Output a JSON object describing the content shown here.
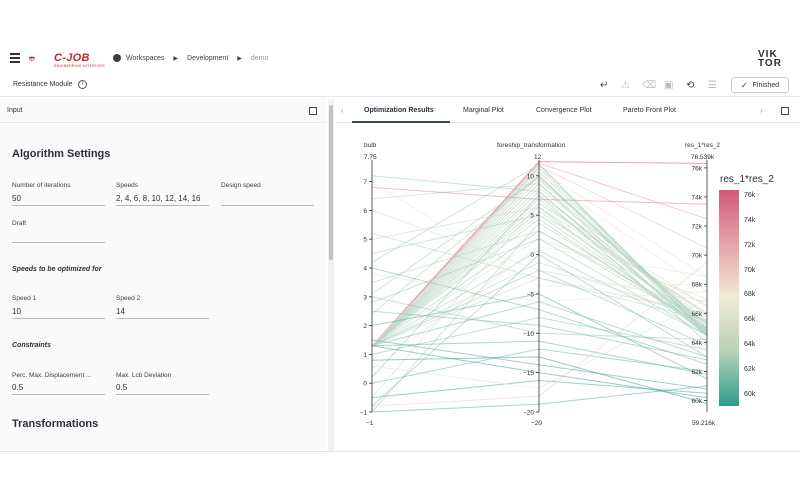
{
  "header": {
    "logo_text": "C-JOB",
    "logo_subtext": "ENGINEERING INTERIORS",
    "breadcrumb": [
      "Workspaces",
      "Development",
      "demo"
    ],
    "brand": [
      "VIK",
      "TOR"
    ]
  },
  "toolbar": {
    "module_title": "Resistance Module",
    "finished_label": "Finished"
  },
  "left_panel": {
    "tab_label": "Input",
    "algorithm_title": "Algorithm Settings",
    "fields_row1": [
      {
        "label": "Number of iterations",
        "value": "50"
      },
      {
        "label": "Speeds",
        "value": "2, 4, 6, 8, 10, 12, 14, 16"
      },
      {
        "label": "Design speed",
        "value": ""
      }
    ],
    "draft": {
      "label": "Draft",
      "value": ""
    },
    "speeds_title": "Speeds to be optimized for",
    "speeds": [
      {
        "label": "Speed 1",
        "value": "10"
      },
      {
        "label": "Speed 2",
        "value": "14"
      }
    ],
    "constraints_title": "Constraints",
    "constraints": [
      {
        "label": "Perc. Max. Displacement ...",
        "value": "0.5"
      },
      {
        "label": "Max. Lcb Deviation",
        "value": "0.5"
      }
    ],
    "transformations_title": "Transformations"
  },
  "right_panel": {
    "tabs": [
      "Optimization Results",
      "Marginal Plot",
      "Convergence Plot",
      "Pareto Front Plot"
    ],
    "active_tab": 0
  },
  "chart_data": {
    "type": "parallel_coordinates",
    "dimensions": [
      {
        "name": "bulb",
        "range_top": "7.75",
        "range_bottom": "−1",
        "min": -1,
        "max": 7.75,
        "ticks": [
          "7",
          "6",
          "5",
          "4",
          "3",
          "2",
          "1",
          "0",
          "−1"
        ],
        "tick_values": [
          7,
          6,
          5,
          4,
          3,
          2,
          1,
          0,
          -1
        ]
      },
      {
        "name": "foreship_transformation",
        "range_top": "12",
        "range_bottom": "−20",
        "min": -20,
        "max": 12,
        "ticks": [
          "10",
          "5",
          "0",
          "−5",
          "−10",
          "−15",
          "−20"
        ],
        "tick_values": [
          10,
          5,
          0,
          -5,
          -10,
          -15,
          -20
        ]
      },
      {
        "name": "res_1*res_2",
        "range_top": "76.539k",
        "range_bottom": "59.216k",
        "min": 59216,
        "max": 76539,
        "ticks": [
          "76k",
          "74k",
          "72k",
          "70k",
          "68k",
          "66k",
          "64k",
          "62k",
          "60k"
        ],
        "tick_values": [
          76000,
          74000,
          72000,
          70000,
          68000,
          66000,
          64000,
          62000,
          60000
        ]
      }
    ],
    "colorbar": {
      "title": "res_1*res_2",
      "ticks": [
        "76k",
        "74k",
        "72k",
        "70k",
        "68k",
        "66k",
        "64k",
        "62k",
        "60k"
      ],
      "colors": [
        "#d6587a",
        "#f1ead6",
        "#2a9d8f"
      ]
    },
    "lines": [
      [
        1.3,
        11.5,
        64500
      ],
      [
        1.3,
        11.0,
        64800
      ],
      [
        1.3,
        10.5,
        65000
      ],
      [
        1.3,
        10.0,
        64600
      ],
      [
        1.3,
        9.5,
        65200
      ],
      [
        1.3,
        9.0,
        64400
      ],
      [
        1.3,
        8.5,
        65500
      ],
      [
        1.3,
        8.0,
        64700
      ],
      [
        1.3,
        7.5,
        65800
      ],
      [
        1.3,
        7.0,
        64900
      ],
      [
        1.3,
        6.5,
        66000
      ],
      [
        1.3,
        6.0,
        64500
      ],
      [
        1.3,
        5.5,
        65300
      ],
      [
        1.3,
        5.0,
        66500
      ],
      [
        1.3,
        4.5,
        64700
      ],
      [
        1.3,
        3.0,
        65000
      ],
      [
        1.3,
        2.0,
        67000
      ],
      [
        1.3,
        0.5,
        64500
      ],
      [
        1.3,
        -1.0,
        65500
      ],
      [
        1.3,
        -3.0,
        66000
      ],
      [
        1.3,
        11.8,
        76300
      ],
      [
        1.3,
        11.6,
        72500
      ],
      [
        1.3,
        11.2,
        70500
      ],
      [
        1.3,
        10.8,
        68500
      ],
      [
        1.3,
        10.2,
        67500
      ],
      [
        2.4,
        10.0,
        65000
      ],
      [
        3.1,
        9.8,
        64800
      ],
      [
        4.2,
        11.4,
        64600
      ],
      [
        6.4,
        9.0,
        65200
      ],
      [
        7.2,
        8.0,
        64500
      ],
      [
        6.8,
        7.0,
        73500
      ],
      [
        5.0,
        6.0,
        66000
      ],
      [
        4.5,
        5.0,
        64800
      ],
      [
        3.5,
        3.0,
        65400
      ],
      [
        2.8,
        2.0,
        64500
      ],
      [
        0.2,
        7.5,
        64000
      ],
      [
        -0.5,
        6.5,
        66500
      ],
      [
        -1.0,
        4.0,
        65000
      ],
      [
        0.5,
        1.0,
        68500
      ],
      [
        -0.8,
        0.0,
        63000
      ],
      [
        2.0,
        -5.0,
        61500
      ],
      [
        1.0,
        -8.0,
        63500
      ],
      [
        0.0,
        -12.0,
        62000
      ],
      [
        -0.5,
        -16.0,
        60500
      ],
      [
        -1.0,
        -19.0,
        61000
      ],
      [
        -0.8,
        -18.0,
        69500
      ],
      [
        0.6,
        -17.0,
        67000
      ],
      [
        1.5,
        -14.0,
        60800
      ],
      [
        3.0,
        -10.0,
        64200
      ],
      [
        4.0,
        -7.0,
        62500
      ],
      [
        5.2,
        -3.0,
        65500
      ],
      [
        6.0,
        -2.0,
        66800
      ],
      [
        7.0,
        -4.0,
        68000
      ],
      [
        3.8,
        -6.0,
        67500
      ],
      [
        2.5,
        -9.0,
        62800
      ],
      [
        1.3,
        -11.0,
        61800
      ],
      [
        1.3,
        -15.0,
        60200
      ],
      [
        1.3,
        -6.0,
        63000
      ],
      [
        1.3,
        -2.0,
        63800
      ],
      [
        0.8,
        -13.0,
        59800
      ]
    ]
  }
}
